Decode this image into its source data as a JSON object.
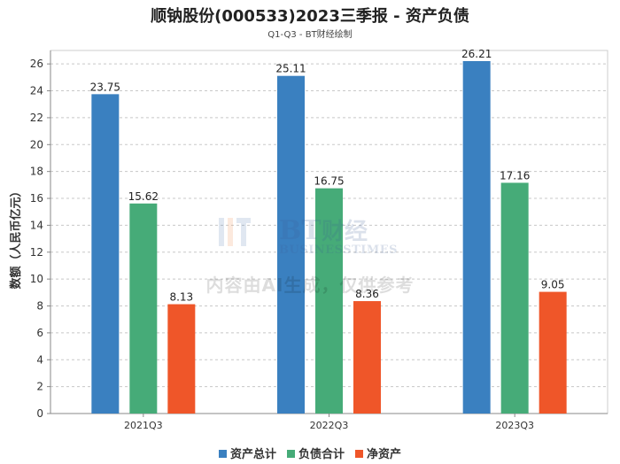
{
  "title": "顺钠股份(000533)2023三季报 - 资产负债",
  "subtitle": "Q1-Q3 - BT财经绘制",
  "watermark": {
    "logo_text": "BT财经",
    "logo_subtext": "BUSINESSTIMES",
    "text": "内容由AI生成，仅供参考"
  },
  "chart_data": {
    "type": "bar",
    "title": "顺钠股份(000533)2023三季报 - 资产负债",
    "subtitle": "Q1-Q3 - BT财经绘制",
    "xlabel": "",
    "ylabel": "数额（人民币亿元）",
    "categories": [
      "2021Q3",
      "2022Q3",
      "2023Q3"
    ],
    "ylim": [
      0,
      27
    ],
    "yticks": [
      0,
      2,
      4,
      6,
      8,
      10,
      12,
      14,
      16,
      18,
      20,
      22,
      24,
      26
    ],
    "grid": true,
    "legend_position": "bottom",
    "series": [
      {
        "name": "资产总计",
        "color": "#3a80c0",
        "values": [
          23.75,
          25.11,
          26.21
        ]
      },
      {
        "name": "负债合计",
        "color": "#46ab78",
        "values": [
          15.62,
          16.75,
          17.16
        ]
      },
      {
        "name": "净资产",
        "color": "#ef5629",
        "values": [
          8.13,
          8.36,
          9.05
        ]
      }
    ]
  }
}
